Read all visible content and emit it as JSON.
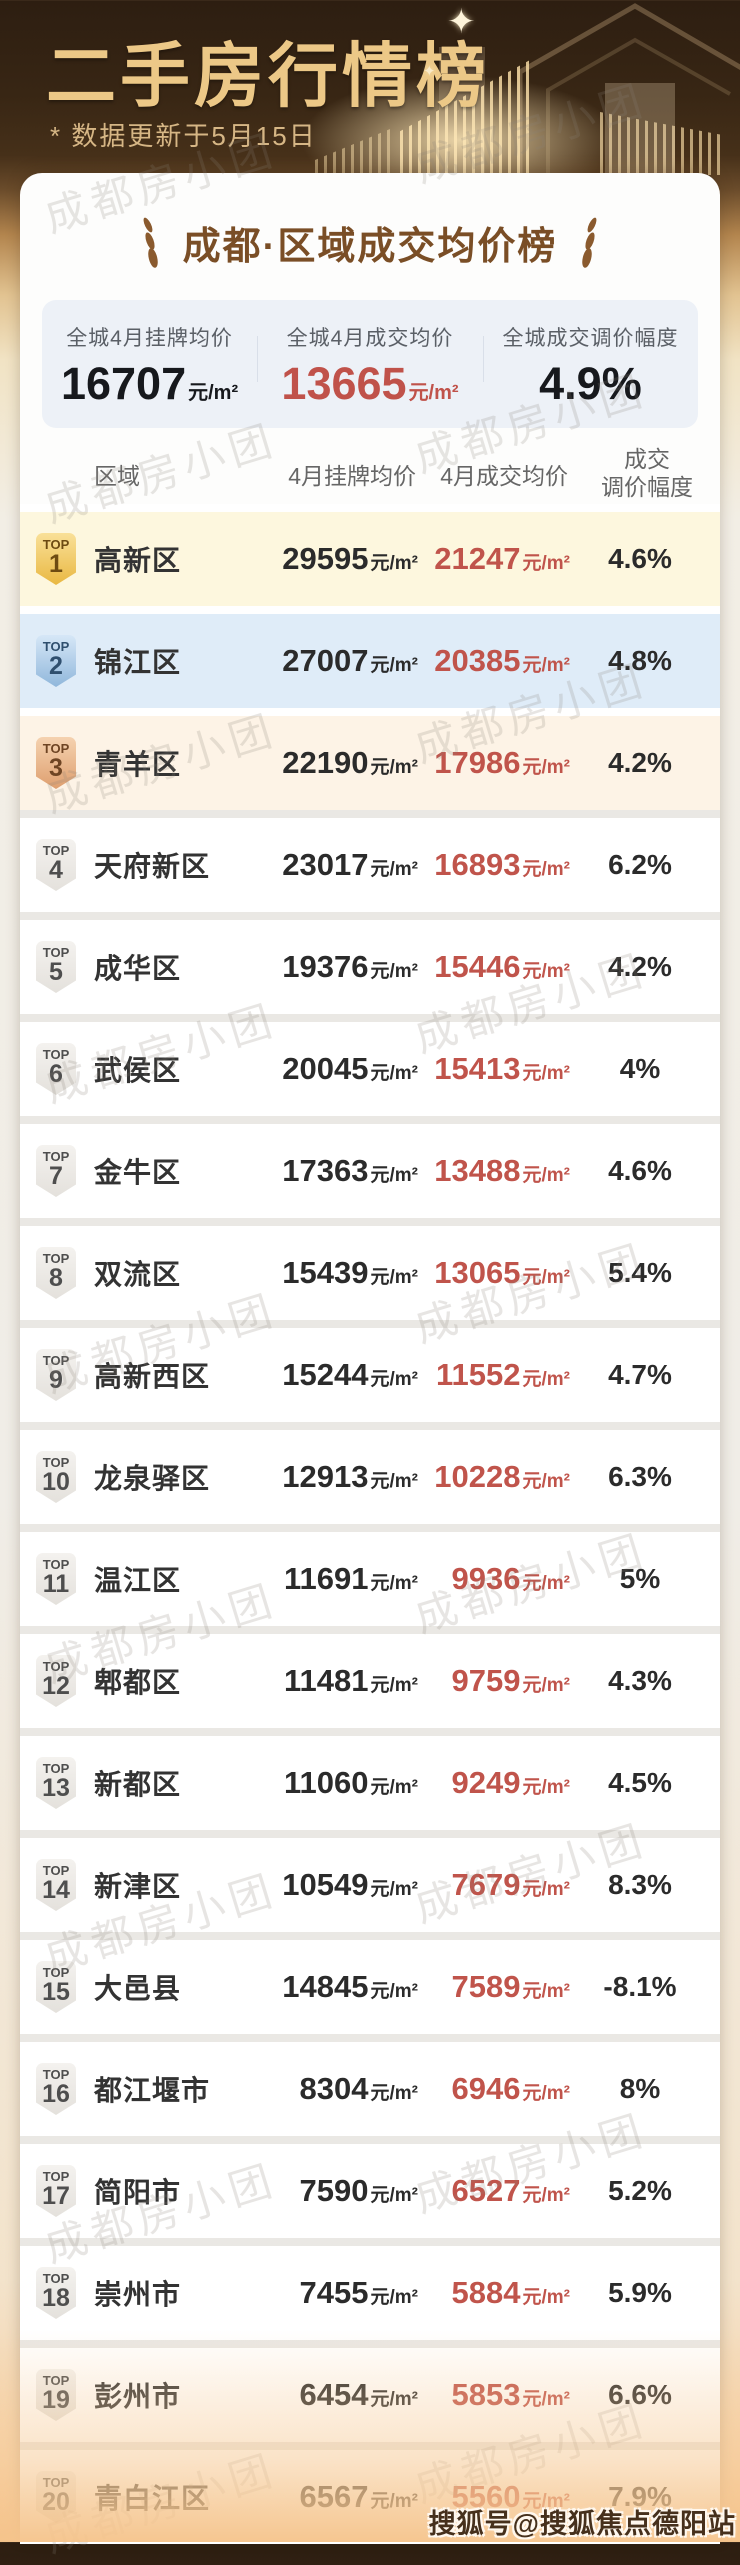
{
  "header": {
    "title": "二手房行情榜",
    "subtitle": "* 数据更新于5月15日",
    "sparkle": "✦"
  },
  "card": {
    "title": "成都·区域成交均价榜",
    "summary": [
      {
        "label": "全城4月挂牌均价",
        "value": "16707",
        "unit": "元/m²"
      },
      {
        "label": "全城4月成交均价",
        "value": "13665",
        "unit": "元/m²"
      },
      {
        "label": "全城成交调价幅度",
        "value": "4.9%",
        "unit": ""
      }
    ]
  },
  "table_header": {
    "region": "区域",
    "listing": "4月挂牌均价",
    "deal": "4月成交均价",
    "change_line1": "成交",
    "change_line2": "调价幅度"
  },
  "rank_prefix": "TOP",
  "price_unit": "元/m²",
  "watermarks": {
    "diagonal": "成都房小团",
    "bottom_right": "搜狐号@搜狐焦点德阳站"
  },
  "colors": {
    "header_gold": "#ecc887",
    "title_brown": "#7a4e26",
    "price_red": "#c0544b",
    "rank1_row_bg": "#fdf7de",
    "rank2_row_bg": "#dfecf8",
    "rank3_row_bg": "#fdf3e6",
    "summary_box_bg": "#edf1f7"
  },
  "chart_data": {
    "type": "table",
    "title": "成都·区域成交均价榜",
    "columns": [
      "区域",
      "4月挂牌均价",
      "4月成交均价",
      "成交调价幅度"
    ],
    "unit": "元/m²",
    "rows": [
      {
        "rank": 1,
        "region": "高新区",
        "listing": 29595,
        "deal": 21247,
        "change": "4.6%"
      },
      {
        "rank": 2,
        "region": "锦江区",
        "listing": 27007,
        "deal": 20385,
        "change": "4.8%"
      },
      {
        "rank": 3,
        "region": "青羊区",
        "listing": 22190,
        "deal": 17986,
        "change": "4.2%"
      },
      {
        "rank": 4,
        "region": "天府新区",
        "listing": 23017,
        "deal": 16893,
        "change": "6.2%"
      },
      {
        "rank": 5,
        "region": "成华区",
        "listing": 19376,
        "deal": 15446,
        "change": "4.2%"
      },
      {
        "rank": 6,
        "region": "武侯区",
        "listing": 20045,
        "deal": 15413,
        "change": "4%"
      },
      {
        "rank": 7,
        "region": "金牛区",
        "listing": 17363,
        "deal": 13488,
        "change": "4.6%"
      },
      {
        "rank": 8,
        "region": "双流区",
        "listing": 15439,
        "deal": 13065,
        "change": "5.4%"
      },
      {
        "rank": 9,
        "region": "高新西区",
        "listing": 15244,
        "deal": 11552,
        "change": "4.7%"
      },
      {
        "rank": 10,
        "region": "龙泉驿区",
        "listing": 12913,
        "deal": 10228,
        "change": "6.3%"
      },
      {
        "rank": 11,
        "region": "温江区",
        "listing": 11691,
        "deal": 9936,
        "change": "5%"
      },
      {
        "rank": 12,
        "region": "郫都区",
        "listing": 11481,
        "deal": 9759,
        "change": "4.3%"
      },
      {
        "rank": 13,
        "region": "新都区",
        "listing": 11060,
        "deal": 9249,
        "change": "4.5%"
      },
      {
        "rank": 14,
        "region": "新津区",
        "listing": 10549,
        "deal": 7679,
        "change": "8.3%"
      },
      {
        "rank": 15,
        "region": "大邑县",
        "listing": 14845,
        "deal": 7589,
        "change": "-8.1%"
      },
      {
        "rank": 16,
        "region": "都江堰市",
        "listing": 8304,
        "deal": 6946,
        "change": "8%"
      },
      {
        "rank": 17,
        "region": "简阳市",
        "listing": 7590,
        "deal": 6527,
        "change": "5.2%"
      },
      {
        "rank": 18,
        "region": "崇州市",
        "listing": 7455,
        "deal": 5884,
        "change": "5.9%"
      },
      {
        "rank": 19,
        "region": "彭州市",
        "listing": 6454,
        "deal": 5853,
        "change": "6.6%"
      },
      {
        "rank": 20,
        "region": "青白江区",
        "listing": 6567,
        "deal": 5560,
        "change": "7.9%"
      }
    ]
  }
}
